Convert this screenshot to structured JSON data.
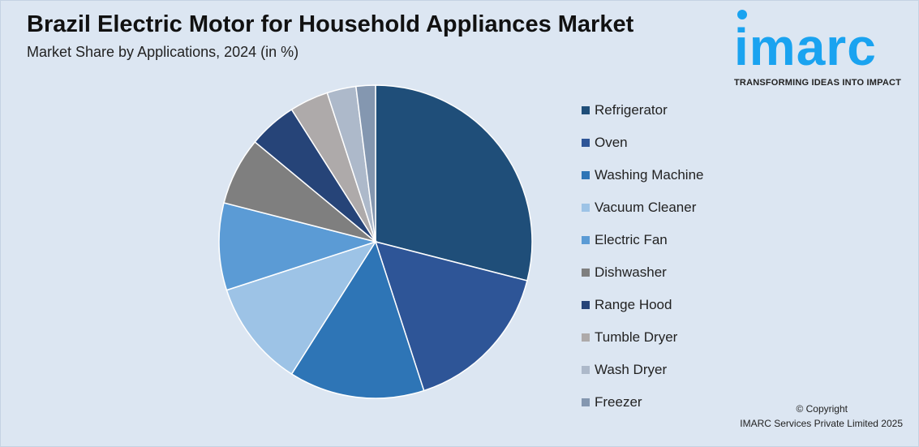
{
  "header": {
    "title": "Brazil Electric Motor for Household Appliances Market",
    "subtitle": "Market Share by Applications, 2024 (in %)"
  },
  "logo": {
    "wordmark": "imarc",
    "tagline": "TRANSFORMING IDEAS INTO IMPACT",
    "color": "#1aa3f0"
  },
  "footer": {
    "copyright": "© Copyright",
    "company": "IMARC Services Private Limited 2025"
  },
  "chart_data": {
    "type": "pie",
    "title": "Brazil Electric Motor for Household Appliances Market",
    "subtitle": "Market Share by Applications, 2024 (in %)",
    "legend_position": "right",
    "start_angle": "12 o'clock, clockwise",
    "categories": [
      "Refrigerator",
      "Oven",
      "Washing Machine",
      "Vacuum Cleaner",
      "Electric Fan",
      "Dishwasher",
      "Range Hood",
      "Tumble Dryer",
      "Wash Dryer",
      "Freezer"
    ],
    "values": [
      29,
      16,
      14,
      11,
      9,
      7,
      5,
      4,
      3,
      2
    ],
    "colors": [
      "#1f4e79",
      "#2e5597",
      "#2e75b6",
      "#9dc3e6",
      "#5b9bd5",
      "#7f7f7f",
      "#264478",
      "#aeaaaa",
      "#adb9ca",
      "#8497b0"
    ]
  }
}
